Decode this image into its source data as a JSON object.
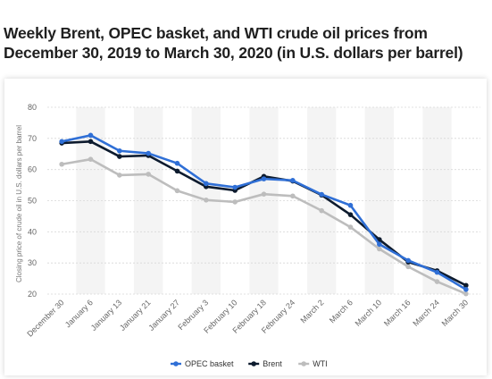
{
  "title": "Weekly Brent, OPEC basket, and WTI crude oil prices from December 30, 2019 to March 30, 2020 (in U.S. dollars per barrel)",
  "chart_data": {
    "type": "line",
    "title": "Weekly Brent, OPEC basket, and WTI crude oil prices from December 30, 2019 to March 30, 2020 (in U.S. dollars per barrel)",
    "xlabel": "",
    "ylabel": "Closing price of crude oil in U.S. dollars per barrel",
    "ylim": [
      20,
      80
    ],
    "yticks": [
      20,
      30,
      40,
      50,
      60,
      70,
      80
    ],
    "grid": true,
    "legend_position": "bottom",
    "categories": [
      "December 30",
      "January 6",
      "January 13",
      "January 21",
      "January 27",
      "February 3",
      "February 10",
      "February 18",
      "February 24",
      "March 2",
      "March 6",
      "March 10",
      "March 16",
      "March 24",
      "March 30"
    ],
    "series": [
      {
        "name": "OPEC basket",
        "color": "#2f6fd6",
        "values": [
          69.0,
          71.0,
          66.0,
          65.2,
          62.0,
          55.5,
          54.3,
          57.0,
          56.5,
          52.0,
          48.5,
          36.0,
          30.8,
          27.0,
          21.5
        ]
      },
      {
        "name": "Brent",
        "color": "#0d1b2e",
        "values": [
          68.5,
          69.0,
          64.2,
          64.5,
          59.5,
          54.5,
          53.3,
          57.8,
          56.3,
          51.8,
          45.5,
          37.5,
          30.3,
          27.5,
          22.8
        ]
      },
      {
        "name": "WTI",
        "color": "#bdbdbd",
        "values": [
          61.7,
          63.3,
          58.2,
          58.5,
          53.2,
          50.2,
          49.6,
          52.1,
          51.5,
          46.8,
          41.5,
          34.5,
          28.8,
          24.0,
          20.1
        ]
      }
    ]
  }
}
